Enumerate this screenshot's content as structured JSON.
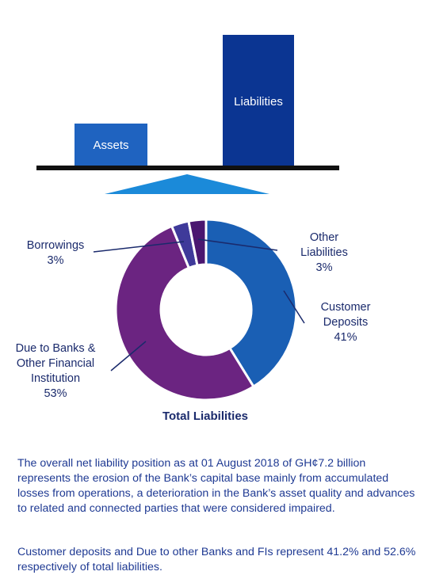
{
  "balance": {
    "assets_label": "Assets",
    "liabilities_label": "Liabilities"
  },
  "chart_data": {
    "type": "pie",
    "title": "Total Liabilities",
    "slices": [
      {
        "name": "Customer Deposits",
        "lines": [
          "Customer",
          "Deposits"
        ],
        "percent_label": "41%",
        "value": 41.2,
        "color": "#1a5fb4"
      },
      {
        "name": "Due to Banks & Other Financial Institution",
        "lines": [
          "Due to Banks &",
          "Other Financial",
          "Institution"
        ],
        "percent_label": "53%",
        "value": 52.6,
        "color": "#6b2481"
      },
      {
        "name": "Borrowings",
        "lines": [
          "Borrowings"
        ],
        "percent_label": "3%",
        "value": 3.1,
        "color": "#3f3a9a"
      },
      {
        "name": "Other Liabilities",
        "lines": [
          "Other",
          "Liabilities"
        ],
        "percent_label": "3%",
        "value": 3.1,
        "color": "#4a1670"
      }
    ]
  },
  "text": {
    "p1": "The overall net liability position as at 01 August 2018 of GH¢7.2 billion represents the erosion of the Bank’s capital base mainly from accumulated losses from operations, a deterioration in the Bank’s asset quality and advances to related and connected parties that were considered impaired.",
    "p2": "Customer deposits and Due to other Banks and FIs represent 41.2% and 52.6% respectively of total liabilities."
  },
  "colors": {
    "dark_blue": "#0b3592",
    "mid_blue": "#1f63c0",
    "light_blue": "#1b8ad9",
    "beam": "#111111",
    "text": "#1a2a6c"
  }
}
